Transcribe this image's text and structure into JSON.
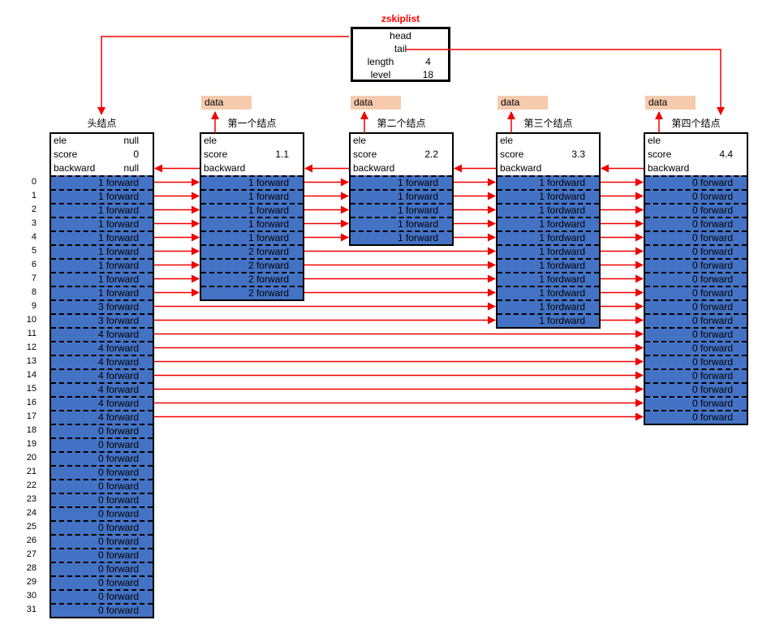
{
  "skiplist_box": {
    "title": "zskiplist",
    "fields": [
      {
        "label": "head",
        "value": ""
      },
      {
        "label": "tail",
        "value": ""
      },
      {
        "label": "length",
        "value": "4"
      },
      {
        "label": "level",
        "value": "18"
      }
    ]
  },
  "data_label": "data",
  "row_numbers": [
    "0",
    "1",
    "2",
    "3",
    "4",
    "5",
    "6",
    "7",
    "8",
    "9",
    "10",
    "11",
    "12",
    "13",
    "14",
    "15",
    "16",
    "17",
    "18",
    "19",
    "20",
    "21",
    "22",
    "23",
    "24",
    "25",
    "26",
    "27",
    "28",
    "29",
    "30",
    "31"
  ],
  "nodes": [
    {
      "title": "头结点",
      "has_data_box": false,
      "fields": [
        {
          "label": "ele",
          "value": "null"
        },
        {
          "label": "score",
          "value": "0"
        },
        {
          "label": "backward",
          "value": "null"
        }
      ],
      "cells": [
        "1 forward",
        "1 forward",
        "1 forward",
        "1 forward",
        "1 forward",
        "1 forward",
        "1 forward",
        "1 forward",
        "1 forward",
        "3 forward",
        "3 forward",
        "4 forward",
        "4 forward",
        "4 forward",
        "4 forward",
        "4 forward",
        "4 forward",
        "4 forward",
        "0 forward",
        "0 forward",
        "0 forward",
        "0 forward",
        "0 forward",
        "0 forward",
        "0 forward",
        "0 forward",
        "0 forward",
        "0 forward",
        "0 forward",
        "0 forward",
        "0 forward",
        "0 forward"
      ]
    },
    {
      "title": "第一个结点",
      "has_data_box": true,
      "fields": [
        {
          "label": "ele",
          "value": ""
        },
        {
          "label": "score",
          "value": "1.1"
        },
        {
          "label": "backward",
          "value": ""
        }
      ],
      "cells": [
        "1 forward",
        "1 forward",
        "1 forward",
        "1 forward",
        "1 forward",
        "2 forward",
        "2 forward",
        "2 forward",
        "2 forward"
      ]
    },
    {
      "title": "第二个结点",
      "has_data_box": true,
      "fields": [
        {
          "label": "ele",
          "value": ""
        },
        {
          "label": "score",
          "value": "2.2"
        },
        {
          "label": "backward",
          "value": ""
        }
      ],
      "cells": [
        "1 forward",
        "1 forward",
        "1 forward",
        "1 forward",
        "1 forward"
      ]
    },
    {
      "title": "第三个结点",
      "has_data_box": true,
      "fields": [
        {
          "label": "ele",
          "value": ""
        },
        {
          "label": "score",
          "value": "3.3"
        },
        {
          "label": "backward",
          "value": ""
        }
      ],
      "cells": [
        "1 fordward",
        "1 fordward",
        "1 fordward",
        "1 fordward",
        "1 fordward",
        "1 fordward",
        "1 fordward",
        "1 fordward",
        "1 fordward",
        "1 fordward",
        "1 fordward"
      ]
    },
    {
      "title": "第四个结点",
      "has_data_box": true,
      "fields": [
        {
          "label": "ele",
          "value": ""
        },
        {
          "label": "score",
          "value": "4.4"
        },
        {
          "label": "backward",
          "value": ""
        }
      ],
      "cells": [
        "0 forward",
        "0 forward",
        "0 forward",
        "0 forward",
        "0 forward",
        "0 forward",
        "0 forward",
        "0 forward",
        "0 forward",
        "0 forward",
        "0 forward",
        "0 forward",
        "0 forward",
        "0 forward",
        "0 forward",
        "0 forward",
        "0 forward",
        "0 forward"
      ]
    }
  ],
  "pointers": {
    "head_points_to": "头结点",
    "tail_points_to": "第四个结点",
    "forward_arrows": [
      {
        "from": 0,
        "to": 1,
        "row_start": 0,
        "row_end": 8
      },
      {
        "from": 0,
        "to": 3,
        "row_start": 9,
        "row_end": 10
      },
      {
        "from": 0,
        "to": 4,
        "row_start": 11,
        "row_end": 17
      },
      {
        "from": 1,
        "to": 2,
        "row_start": 0,
        "row_end": 4
      },
      {
        "from": 1,
        "to": 3,
        "row_start": 5,
        "row_end": 8
      },
      {
        "from": 2,
        "to": 3,
        "row_start": 0,
        "row_end": 4
      },
      {
        "from": 3,
        "to": 4,
        "row_start": 0,
        "row_end": 10
      }
    ],
    "backward_arrows": [
      {
        "from": 1,
        "to": 0
      },
      {
        "from": 2,
        "to": 1
      },
      {
        "from": 3,
        "to": 2
      },
      {
        "from": 4,
        "to": 3
      }
    ]
  },
  "colors": {
    "arrow": "#f00000",
    "cell_bg": "#4472c4",
    "data_bg": "#f6cbad",
    "skiplist_title": "#ff0000"
  }
}
